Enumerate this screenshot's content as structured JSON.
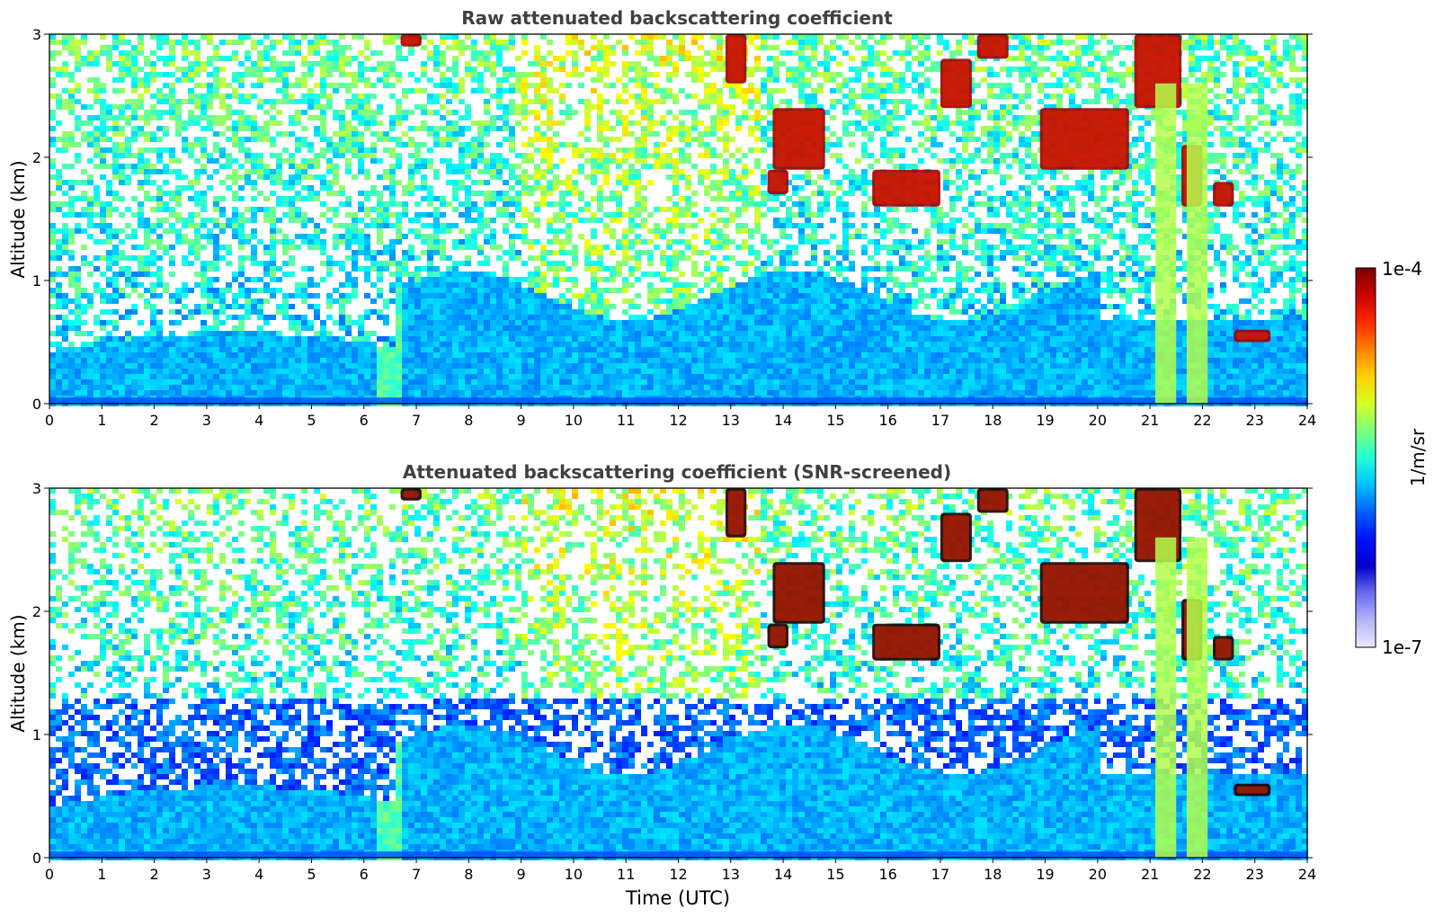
{
  "chart_data": [
    {
      "type": "heatmap",
      "title": "Raw attenuated backscattering coefficient",
      "xlabel": "",
      "ylabel": "Altitude (km)",
      "xlim": [
        0,
        24
      ],
      "ylim": [
        0,
        3
      ],
      "x_ticks": [
        "0",
        "1",
        "2",
        "3",
        "4",
        "5",
        "6",
        "7",
        "8",
        "9",
        "10",
        "11",
        "12",
        "13",
        "14",
        "15",
        "16",
        "17",
        "18",
        "19",
        "20",
        "21",
        "22",
        "23",
        "24"
      ],
      "y_ticks": [
        "0",
        "1",
        "2",
        "3"
      ],
      "colorscale": "jet",
      "value_range": [
        1e-07,
        0.0001
      ],
      "cloud_layers": [
        {
          "t0": 6.7,
          "t1": 7.1,
          "z0": 2.9,
          "z1": 3.0
        },
        {
          "t0": 12.9,
          "t1": 13.3,
          "z0": 2.6,
          "z1": 3.0
        },
        {
          "t0": 13.8,
          "t1": 14.8,
          "z0": 1.9,
          "z1": 2.4
        },
        {
          "t0": 13.7,
          "t1": 14.1,
          "z0": 1.7,
          "z1": 1.9
        },
        {
          "t0": 15.7,
          "t1": 17.0,
          "z0": 1.6,
          "z1": 1.9
        },
        {
          "t0": 17.0,
          "t1": 17.6,
          "z0": 2.4,
          "z1": 2.8
        },
        {
          "t0": 17.7,
          "t1": 18.3,
          "z0": 2.8,
          "z1": 3.0
        },
        {
          "t0": 18.9,
          "t1": 20.6,
          "z0": 1.9,
          "z1": 2.4
        },
        {
          "t0": 20.7,
          "t1": 21.6,
          "z0": 2.4,
          "z1": 3.0
        },
        {
          "t0": 21.6,
          "t1": 22.0,
          "z0": 1.6,
          "z1": 2.1
        },
        {
          "t0": 22.2,
          "t1": 22.6,
          "z0": 1.6,
          "z1": 1.8
        },
        {
          "t0": 22.6,
          "t1": 23.3,
          "z0": 0.5,
          "z1": 0.6
        }
      ]
    },
    {
      "type": "heatmap",
      "title": "Attenuated backscattering coefficient (SNR-screened)",
      "xlabel": "Time (UTC)",
      "ylabel": "Altitude (km)",
      "xlim": [
        0,
        24
      ],
      "ylim": [
        0,
        3
      ],
      "x_ticks": [
        "0",
        "1",
        "2",
        "3",
        "4",
        "5",
        "6",
        "7",
        "8",
        "9",
        "10",
        "11",
        "12",
        "13",
        "14",
        "15",
        "16",
        "17",
        "18",
        "19",
        "20",
        "21",
        "22",
        "23",
        "24"
      ],
      "y_ticks": [
        "0",
        "1",
        "2",
        "3"
      ],
      "colorscale": "jet",
      "value_range": [
        1e-07,
        0.0001
      ]
    }
  ],
  "colorbar": {
    "top_label": "1e-4",
    "bottom_label": "1e-7",
    "unit_label": "1/m/sr",
    "colors": [
      "#7f0000",
      "#c80000",
      "#ff2800",
      "#ff8000",
      "#ffd000",
      "#d4ff23",
      "#7dff7a",
      "#23ffd4",
      "#00c0ff",
      "#0060ff",
      "#0010ff",
      "#0000c8",
      "#6a6af0",
      "#b5b5f8",
      "#eaeaff"
    ]
  }
}
